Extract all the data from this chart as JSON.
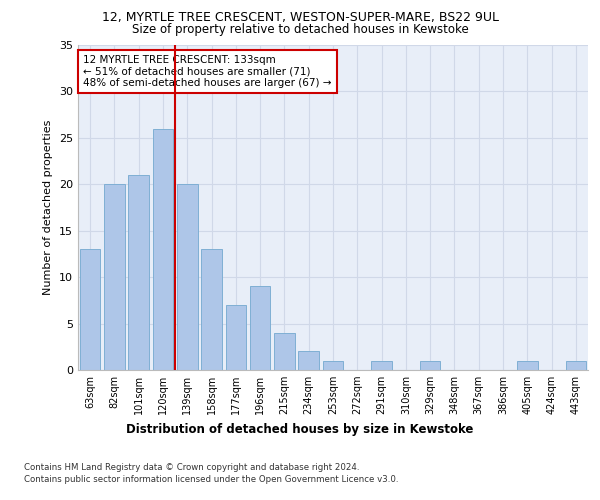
{
  "title1": "12, MYRTLE TREE CRESCENT, WESTON-SUPER-MARE, BS22 9UL",
  "title2": "Size of property relative to detached houses in Kewstoke",
  "xlabel": "Distribution of detached houses by size in Kewstoke",
  "ylabel": "Number of detached properties",
  "categories": [
    "63sqm",
    "82sqm",
    "101sqm",
    "120sqm",
    "139sqm",
    "158sqm",
    "177sqm",
    "196sqm",
    "215sqm",
    "234sqm",
    "253sqm",
    "272sqm",
    "291sqm",
    "310sqm",
    "329sqm",
    "348sqm",
    "367sqm",
    "386sqm",
    "405sqm",
    "424sqm",
    "443sqm"
  ],
  "values": [
    13,
    20,
    21,
    26,
    20,
    13,
    7,
    9,
    4,
    2,
    1,
    0,
    1,
    0,
    1,
    0,
    0,
    0,
    1,
    0,
    1
  ],
  "bar_color": "#aec6e8",
  "bar_edge_color": "#7fafd4",
  "red_line_x": 3.5,
  "annotation_line1": "12 MYRTLE TREE CRESCENT: 133sqm",
  "annotation_line2": "← 51% of detached houses are smaller (71)",
  "annotation_line3": "48% of semi-detached houses are larger (67) →",
  "annotation_box_color": "#ffffff",
  "annotation_box_edge": "#cc0000",
  "red_line_color": "#cc0000",
  "grid_color": "#d0d8e8",
  "background_color": "#e8eef8",
  "ylim": [
    0,
    35
  ],
  "yticks": [
    0,
    5,
    10,
    15,
    20,
    25,
    30,
    35
  ],
  "footer1": "Contains HM Land Registry data © Crown copyright and database right 2024.",
  "footer2": "Contains public sector information licensed under the Open Government Licence v3.0."
}
